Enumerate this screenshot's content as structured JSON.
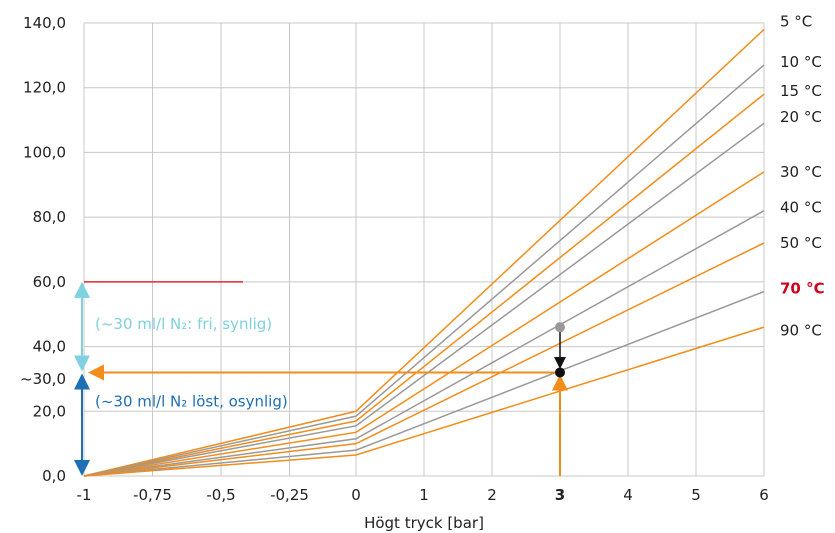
{
  "colors": {
    "orange": "#f28c1a",
    "gray": "#999999",
    "red": "#e8262c",
    "emph_red": "#d0021b",
    "light_blue": "#7fd0e0",
    "dark_blue": "#1f6fb5",
    "black": "#111111",
    "grid": "#c8c8c8"
  },
  "chart_data": {
    "type": "line",
    "xlabel": "Högt tryck [bar]",
    "x_ticks": [
      "-1",
      "-0,75",
      "-0,5",
      "-0,25",
      "0",
      "1",
      "2",
      "3",
      "4",
      "5",
      "6"
    ],
    "x_tick_highlight": "3",
    "y_ticks": [
      "140,0",
      "120,0",
      "100,0",
      "80,0",
      "60,0",
      "40,0",
      "~30,0",
      "20,0",
      "0,0"
    ],
    "y_tick_values": [
      140,
      120,
      100,
      80,
      60,
      40,
      30,
      20,
      0
    ],
    "ylim": [
      0,
      140
    ],
    "grid": true,
    "series": [
      {
        "name": "5 °C",
        "color": "orange",
        "values": [
          0,
          20,
          138
        ],
        "label_y": 140.5
      },
      {
        "name": "10 °C",
        "color": "gray",
        "values": [
          0,
          18.5,
          127
        ],
        "label_y": 128
      },
      {
        "name": "15 °C",
        "color": "orange",
        "values": [
          0,
          17,
          118
        ],
        "label_y": 119
      },
      {
        "name": "20 °C",
        "color": "gray",
        "values": [
          0,
          15.5,
          109
        ],
        "label_y": 111
      },
      {
        "name": "30 °C",
        "color": "orange",
        "values": [
          0,
          13.5,
          94
        ],
        "label_y": 94
      },
      {
        "name": "40 °C",
        "color": "gray",
        "values": [
          0,
          11.5,
          82
        ],
        "label_y": 83
      },
      {
        "name": "50 °C",
        "color": "orange",
        "values": [
          0,
          10,
          72
        ],
        "label_y": 72
      },
      {
        "name": "70 °C",
        "color": "gray",
        "values": [
          0,
          8,
          57
        ],
        "label_y": 58,
        "emphasis": true
      },
      {
        "name": "90 °C",
        "color": "orange",
        "values": [
          0,
          6.5,
          46
        ],
        "label_y": 45
      }
    ],
    "series_x": [
      -1,
      0,
      6
    ],
    "annotations": {
      "limit_line": {
        "y": 60,
        "x_from": -1,
        "x_to": -0.42
      },
      "free_note": "(~30 ml/l N₂: fri, synlig)",
      "dissolved_note": "(~30 ml/l N₂ löst, osynlig)",
      "operating_point": {
        "x": 3,
        "y_from": 46,
        "y_to": 32
      }
    }
  }
}
